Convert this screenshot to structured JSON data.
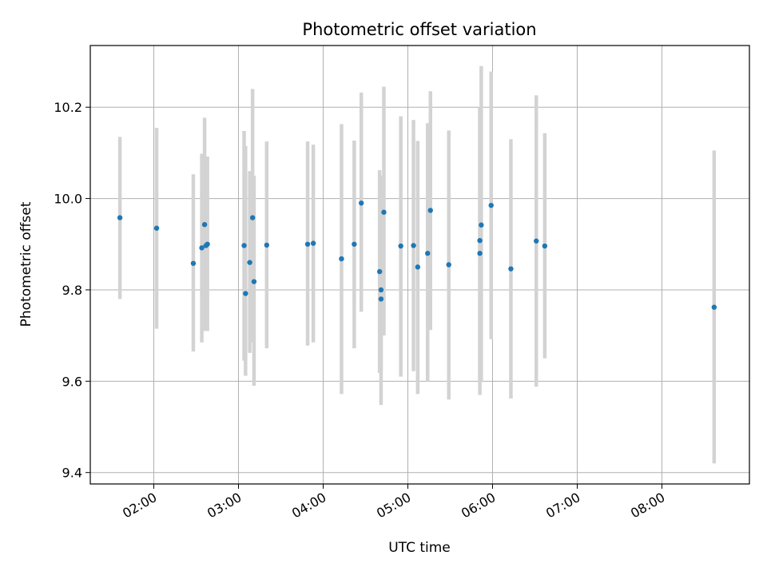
{
  "chart_data": {
    "type": "scatter",
    "title": "Photometric offset variation",
    "xlabel": "UTC time",
    "ylabel": "Photometric offset",
    "xlim": [
      "01:15",
      "09:02"
    ],
    "ylim": [
      9.375,
      10.335
    ],
    "grid": true,
    "x_ticks": [
      "02:00",
      "03:00",
      "04:00",
      "05:00",
      "06:00",
      "07:00",
      "08:00"
    ],
    "y_ticks": [
      "9.4",
      "9.6",
      "9.8",
      "10.0",
      "10.2"
    ],
    "colors": {
      "points": "#1f77b4",
      "errorbars": "#d3d3d3",
      "grid": "#b0b0b0"
    },
    "points": [
      {
        "x": "01:36",
        "y": 9.958,
        "ylo": 9.78,
        "yhi": 10.135
      },
      {
        "x": "02:02",
        "y": 9.935,
        "ylo": 9.715,
        "yhi": 10.155
      },
      {
        "x": "02:28",
        "y": 9.858,
        "ylo": 9.665,
        "yhi": 10.053
      },
      {
        "x": "02:34",
        "y": 9.892,
        "ylo": 9.685,
        "yhi": 10.098
      },
      {
        "x": "02:36",
        "y": 9.943,
        "ylo": 9.71,
        "yhi": 10.177
      },
      {
        "x": "02:37",
        "y": 9.897,
        "ylo": 9.71,
        "yhi": 10.088
      },
      {
        "x": "02:38",
        "y": 9.9,
        "ylo": 9.71,
        "yhi": 10.092
      },
      {
        "x": "03:04",
        "y": 9.897,
        "ylo": 9.645,
        "yhi": 10.148
      },
      {
        "x": "03:05",
        "y": 9.792,
        "ylo": 9.612,
        "yhi": 10.115
      },
      {
        "x": "03:08",
        "y": 9.86,
        "ylo": 9.662,
        "yhi": 10.06
      },
      {
        "x": "03:10",
        "y": 9.958,
        "ylo": 9.685,
        "yhi": 10.24
      },
      {
        "x": "03:11",
        "y": 9.818,
        "ylo": 9.59,
        "yhi": 10.05
      },
      {
        "x": "03:20",
        "y": 9.898,
        "ylo": 9.672,
        "yhi": 10.125
      },
      {
        "x": "03:49",
        "y": 9.9,
        "ylo": 9.678,
        "yhi": 10.125
      },
      {
        "x": "03:53",
        "y": 9.902,
        "ylo": 9.685,
        "yhi": 10.118
      },
      {
        "x": "04:13",
        "y": 9.868,
        "ylo": 9.572,
        "yhi": 10.163
      },
      {
        "x": "04:22",
        "y": 9.9,
        "ylo": 9.672,
        "yhi": 10.127
      },
      {
        "x": "04:27",
        "y": 9.99,
        "ylo": 9.752,
        "yhi": 10.232
      },
      {
        "x": "04:40",
        "y": 9.84,
        "ylo": 9.618,
        "yhi": 10.062
      },
      {
        "x": "04:41",
        "y": 9.8,
        "ylo": 9.622,
        "yhi": 10.05
      },
      {
        "x": "04:41",
        "y": 9.78,
        "ylo": 9.548,
        "yhi": 10.0
      },
      {
        "x": "04:43",
        "y": 9.97,
        "ylo": 9.7,
        "yhi": 10.245
      },
      {
        "x": "04:55",
        "y": 9.896,
        "ylo": 9.61,
        "yhi": 10.18
      },
      {
        "x": "05:04",
        "y": 9.897,
        "ylo": 9.622,
        "yhi": 10.172
      },
      {
        "x": "05:07",
        "y": 9.85,
        "ylo": 9.572,
        "yhi": 10.126
      },
      {
        "x": "05:14",
        "y": 9.88,
        "ylo": 9.6,
        "yhi": 10.165
      },
      {
        "x": "05:16",
        "y": 9.974,
        "ylo": 9.712,
        "yhi": 10.235
      },
      {
        "x": "05:29",
        "y": 9.855,
        "ylo": 9.56,
        "yhi": 10.149
      },
      {
        "x": "05:51",
        "y": 9.908,
        "ylo": 9.6,
        "yhi": 10.2
      },
      {
        "x": "05:51",
        "y": 9.88,
        "ylo": 9.57,
        "yhi": 10.2
      },
      {
        "x": "05:52",
        "y": 9.942,
        "ylo": 9.598,
        "yhi": 10.29
      },
      {
        "x": "05:59",
        "y": 9.985,
        "ylo": 9.692,
        "yhi": 10.278
      },
      {
        "x": "06:13",
        "y": 9.846,
        "ylo": 9.562,
        "yhi": 10.13
      },
      {
        "x": "06:31",
        "y": 9.907,
        "ylo": 9.588,
        "yhi": 10.226
      },
      {
        "x": "06:37",
        "y": 9.896,
        "ylo": 9.65,
        "yhi": 10.143
      },
      {
        "x": "08:37",
        "y": 9.762,
        "ylo": 9.42,
        "yhi": 10.105
      }
    ]
  }
}
